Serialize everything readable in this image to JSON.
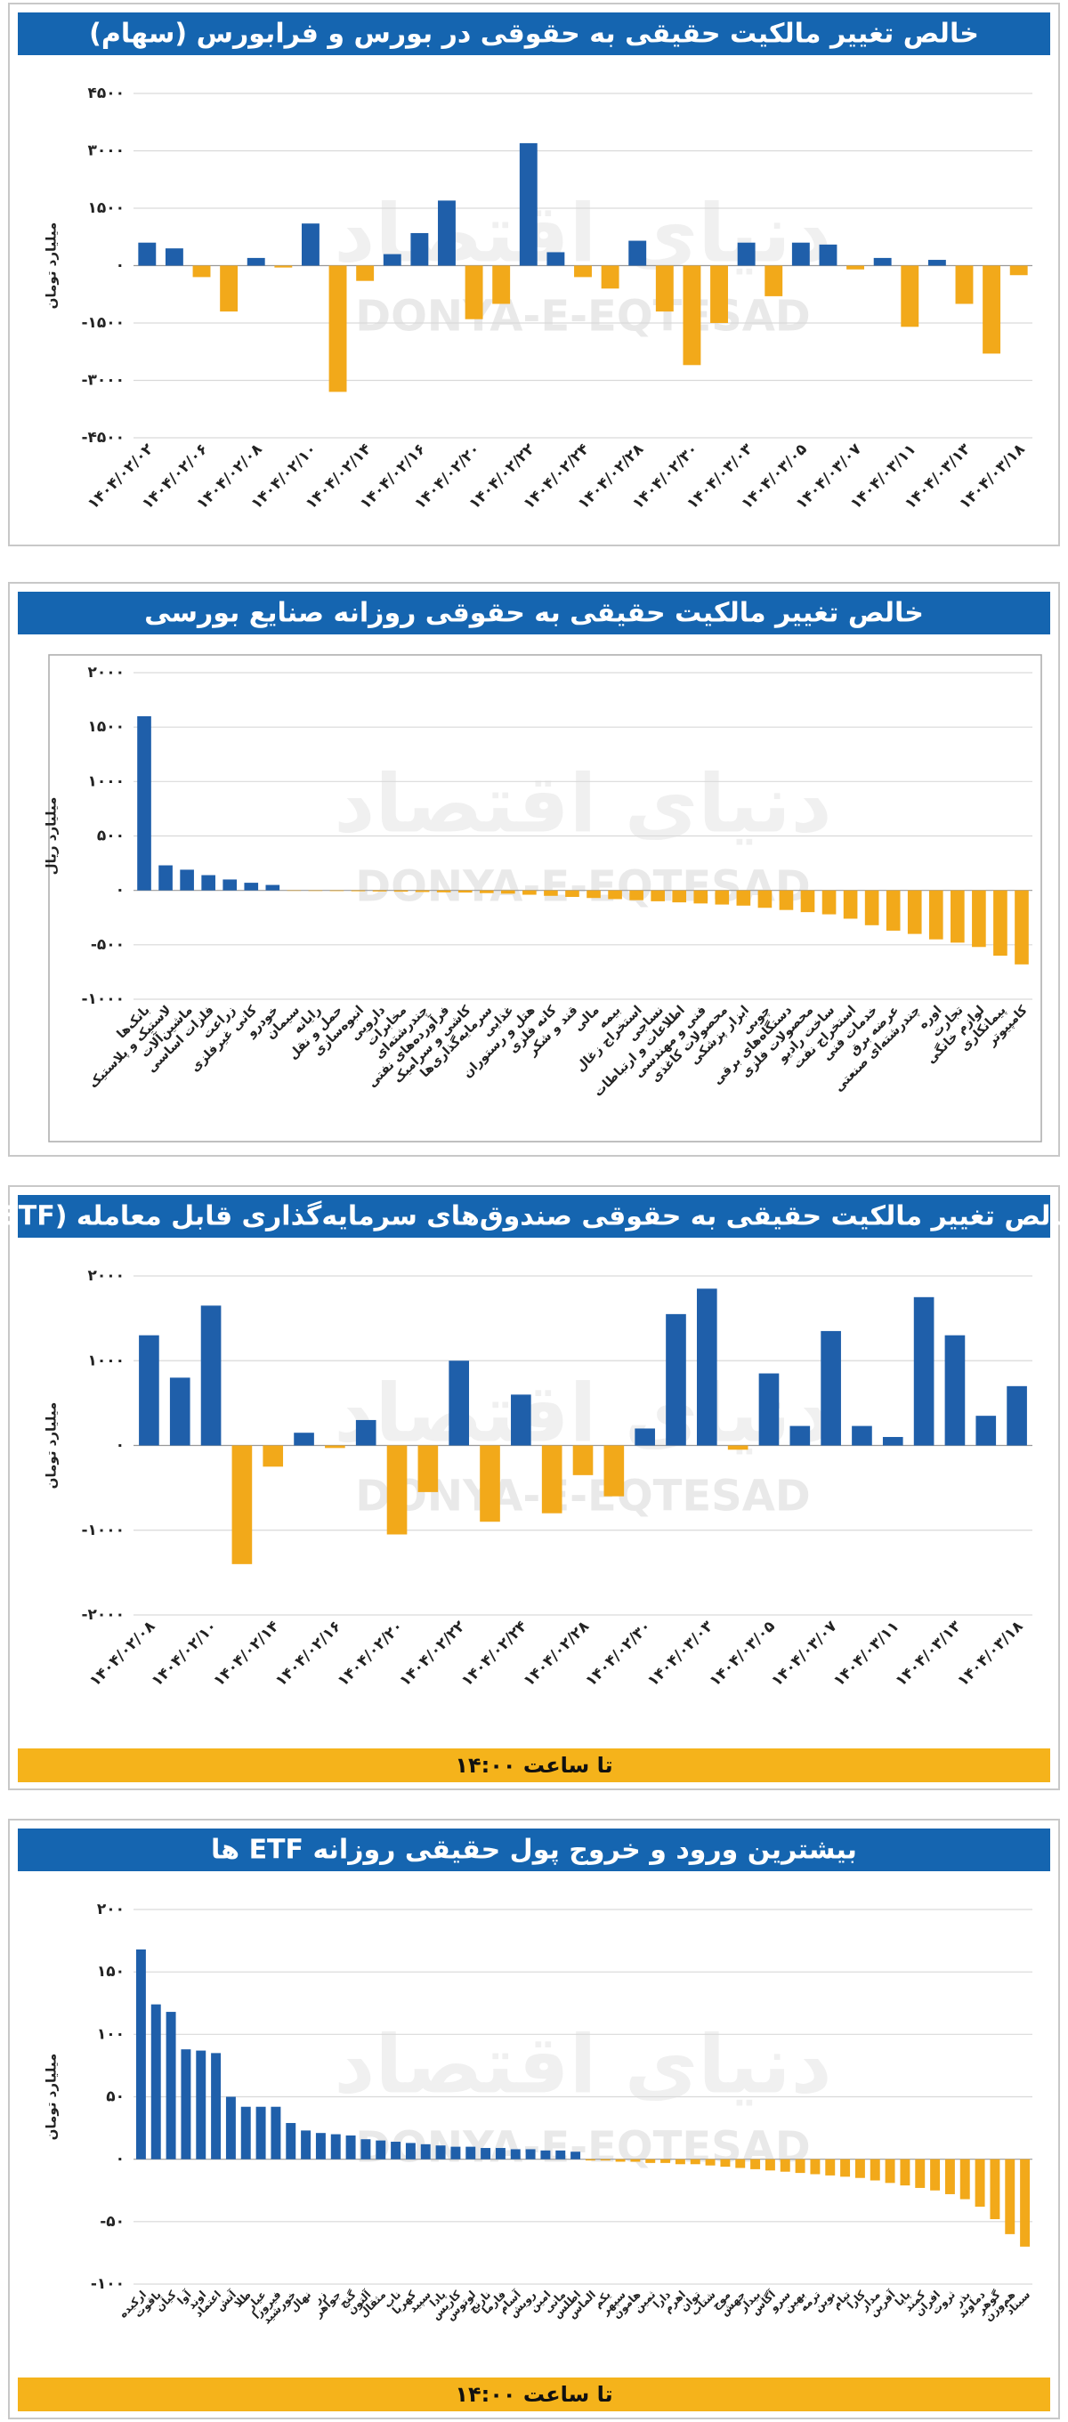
{
  "watermark": "DONYA-E-EQTESAD",
  "watermark_fa": "دنیای اقتصاد",
  "chart_data": [
    {
      "type": "bar",
      "title": "خالص تغییر مالکیت حقیقی به حقوقی در بورس و فرابورس (سهام)",
      "y_label": "میلیارد تومان",
      "categories": [
        "۱۴۰۴/۰۲/۰۲",
        null,
        "۱۴۰۴/۰۲/۰۶",
        null,
        "۱۴۰۴/۰۲/۰۸",
        null,
        "۱۴۰۴/۰۲/۱۰",
        null,
        "۱۴۰۴/۰۲/۱۴",
        null,
        "۱۴۰۴/۰۲/۱۶",
        null,
        "۱۴۰۴/۰۲/۲۰",
        null,
        "۱۴۰۴/۰۲/۲۲",
        null,
        "۱۴۰۴/۰۲/۲۴",
        null,
        "۱۴۰۴/۰۲/۲۸",
        null,
        "۱۴۰۴/۰۲/۳۰",
        null,
        "۱۴۰۴/۰۳/۰۳",
        null,
        "۱۴۰۴/۰۳/۰۵",
        null,
        "۱۴۰۴/۰۳/۰۷",
        null,
        "۱۴۰۴/۰۳/۱۱",
        null,
        "۱۴۰۴/۰۳/۱۳",
        null,
        "۱۴۰۴/۰۳/۱۸"
      ],
      "values": [
        600,
        450,
        -300,
        -1200,
        200,
        -50,
        1100,
        -3300,
        -400,
        300,
        850,
        1700,
        -1400,
        -1000,
        3200,
        350,
        -300,
        -600,
        650,
        -1200,
        -2600,
        -1500,
        600,
        -800,
        600,
        550,
        -100,
        200,
        -1600,
        150,
        -1000,
        -2300,
        -250
      ],
      "positive_color": "#1f5faa",
      "negative_color": "#f2a91a",
      "ylim": [
        -4500,
        4500
      ],
      "yticks": [
        {
          "value": 4500,
          "label": "۴۵۰۰"
        },
        {
          "value": 3000,
          "label": "۳۰۰۰"
        },
        {
          "value": 1500,
          "label": "۱۵۰۰"
        },
        {
          "value": 0,
          "label": "۰"
        },
        {
          "value": -1500,
          "label": "-۱۵۰۰"
        },
        {
          "value": -3000,
          "label": "-۳۰۰۰"
        },
        {
          "value": -4500,
          "label": "-۴۵۰۰"
        }
      ],
      "grid": true
    },
    {
      "type": "bar",
      "title": "خالص تغییر مالکیت حقیقی به حقوقی روزانه صنایع بورسی",
      "y_label": "میلیارد ریال",
      "categories": [
        "بانک‌ها",
        "لاستیک و پلاستیک",
        "ماشین‌آلات",
        "فلزات اساسی",
        "زراعت",
        "کانی غیرفلزی",
        "خودرو",
        "سیمان",
        "رایانه",
        "حمل و نقل",
        "انبوه‌سازی",
        "دارویی",
        "مخابرات",
        "چندرشته‌ای",
        "فرآورده‌های نفتی",
        "کاشی و سرامیک",
        "سرمایه‌گذاری‌ها",
        "غذایی",
        "هتل و رستوران",
        "کانه فلزی",
        "قند و شکر",
        "مالی",
        "بیمه",
        "استخراج زغال",
        "نساجی",
        "اطلاعات و ارتباطات",
        "فنی و مهندسی",
        "محصولات کاغذی",
        "ابزار پزشکی",
        "چوبی",
        "دستگاه‌های برقی",
        "محصولات فلزی",
        "ساخت رادیو",
        "استخراج نفت",
        "خدمات فنی",
        "عرضه برق",
        "چندرشته‌ای صنعتی",
        "اوره",
        "تجارت",
        "لوازم خانگی",
        "پیمانکاری",
        "کامپیوتر"
      ],
      "values": [
        1600,
        230,
        190,
        140,
        100,
        70,
        50,
        -3,
        -5,
        -6,
        -8,
        -10,
        -12,
        -15,
        -18,
        -20,
        -25,
        -30,
        -40,
        -50,
        -60,
        -70,
        -80,
        -90,
        -100,
        -110,
        -120,
        -130,
        -140,
        -160,
        -180,
        -200,
        -220,
        -260,
        -320,
        -370,
        -400,
        -450,
        -480,
        -520,
        -600,
        -680
      ],
      "positive_color": "#1f5faa",
      "negative_color": "#f2a91a",
      "ylim": [
        -1000,
        2000
      ],
      "yticks": [
        {
          "value": 2000,
          "label": "۲۰۰۰"
        },
        {
          "value": 1500,
          "label": "۱۵۰۰"
        },
        {
          "value": 1000,
          "label": "۱۰۰۰"
        },
        {
          "value": 500,
          "label": "۵۰۰"
        },
        {
          "value": 0,
          "label": "۰"
        },
        {
          "value": -500,
          "label": "-۵۰۰"
        },
        {
          "value": -1000,
          "label": "-۱۰۰۰"
        }
      ],
      "grid": true,
      "plot_border": true
    },
    {
      "type": "bar",
      "title": "خالص تغییر مالکیت حقیقی به حقوقی صندوق‌های سرمایه‌گذاری قابل معامله (ETF)",
      "y_label": "میلیارد تومان",
      "footer": "تا ساعت ۱۴:۰۰",
      "categories": [
        "۱۴۰۴/۰۲/۰۸",
        null,
        "۱۴۰۴/۰۲/۱۰",
        null,
        "۱۴۰۴/۰۲/۱۴",
        null,
        "۱۴۰۴/۰۲/۱۶",
        null,
        "۱۴۰۴/۰۲/۲۰",
        null,
        "۱۴۰۴/۰۲/۲۲",
        null,
        "۱۴۰۴/۰۲/۲۴",
        null,
        "۱۴۰۴/۰۲/۲۸",
        null,
        "۱۴۰۴/۰۲/۳۰",
        null,
        "۱۴۰۴/۰۳/۰۳",
        null,
        "۱۴۰۴/۰۳/۰۵",
        null,
        "۱۴۰۴/۰۳/۰۷",
        null,
        "۱۴۰۴/۰۳/۱۱",
        null,
        "۱۴۰۴/۰۳/۱۳",
        null,
        "۱۴۰۴/۰۳/۱۸"
      ],
      "values": [
        1300,
        800,
        1650,
        -1400,
        -250,
        150,
        -30,
        300,
        -1050,
        -550,
        1000,
        -900,
        600,
        -800,
        -350,
        -600,
        200,
        1550,
        1850,
        -50,
        850,
        230,
        1350,
        230,
        100,
        1750,
        1300,
        350,
        700
      ],
      "positive_color": "#1f5faa",
      "negative_color": "#f2a91a",
      "ylim": [
        -2000,
        2000
      ],
      "yticks": [
        {
          "value": 2000,
          "label": "۲۰۰۰"
        },
        {
          "value": 1000,
          "label": "۱۰۰۰"
        },
        {
          "value": 0,
          "label": "۰"
        },
        {
          "value": -1000,
          "label": "-۱۰۰۰"
        },
        {
          "value": -2000,
          "label": "-۲۰۰۰"
        }
      ],
      "grid": true
    },
    {
      "type": "bar",
      "title": "بیشترین ورود و خروج پول حقیقی روزانه ETF ها",
      "y_label": "میلیارد تومان",
      "footer": "تا ساعت ۱۴:۰۰",
      "categories": [
        "ارکیده",
        "یاقوت",
        "کیان",
        "آوا",
        "اوند",
        "اعتماد",
        "آتش",
        "طلا",
        "عیار",
        "فیروزا",
        "خورشید",
        "نهال",
        "زر",
        "جواهر",
        "گنج",
        "آلتون",
        "مثقال",
        "ناب",
        "کهربا",
        "سپید",
        "پادا",
        "کاریس",
        "لوتوس",
        "نارنج",
        "فارما",
        "آسام",
        "رویش",
        "امین",
        "مانی",
        "اطلس",
        "الماس",
        "یکم",
        "سپهر",
        "هامون",
        "ثمین",
        "دارا",
        "اهرم",
        "توان",
        "شتاب",
        "موج",
        "جهش",
        "بیدار",
        "آگاس",
        "سرو",
        "بهین",
        "ترمه",
        "نوین",
        "تیام",
        "کارا",
        "مدار",
        "آفرین",
        "پایا",
        "کمند",
        "افران",
        "ثروت",
        "بذر",
        "دماوند",
        "گوهر",
        "هم‌وزن",
        "سیناد"
      ],
      "values": [
        168,
        124,
        118,
        88,
        87,
        85,
        50,
        42,
        42,
        42,
        29,
        23,
        21,
        20,
        19,
        16,
        15,
        14,
        13,
        12,
        11,
        10,
        10,
        9,
        9,
        8,
        8,
        7,
        7,
        6,
        -1,
        -1,
        -2,
        -2,
        -3,
        -3,
        -4,
        -4,
        -5,
        -6,
        -7,
        -8,
        -9,
        -10,
        -11,
        -12,
        -13,
        -14,
        -15,
        -17,
        -19,
        -21,
        -23,
        -25,
        -28,
        -32,
        -38,
        -48,
        -60,
        -70
      ],
      "positive_color": "#1f5faa",
      "negative_color": "#f2a91a",
      "ylim": [
        -100,
        200
      ],
      "yticks": [
        {
          "value": 200,
          "label": "۲۰۰"
        },
        {
          "value": 150,
          "label": "۱۵۰"
        },
        {
          "value": 100,
          "label": "۱۰۰"
        },
        {
          "value": 50,
          "label": "۵۰"
        },
        {
          "value": 0,
          "label": "۰"
        },
        {
          "value": -50,
          "label": "-۵۰"
        },
        {
          "value": -100,
          "label": "-۱۰۰"
        }
      ],
      "grid": true
    }
  ]
}
